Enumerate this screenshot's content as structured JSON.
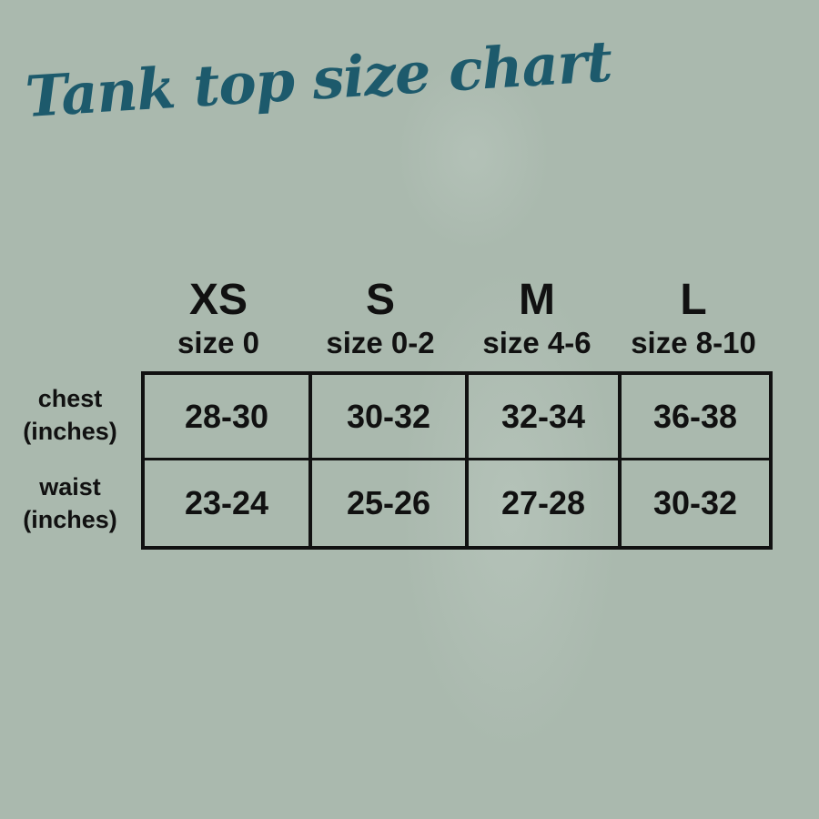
{
  "title": "Tank top size chart",
  "colors": {
    "title": "#1d5a6c",
    "background": "#aab9ae",
    "text": "#111111"
  },
  "chart_data": {
    "type": "table",
    "title": "Tank top size chart",
    "columns": [
      {
        "size": "XS",
        "label": "size 0"
      },
      {
        "size": "S",
        "label": "size 0-2"
      },
      {
        "size": "M",
        "label": "size 4-6"
      },
      {
        "size": "L",
        "label": "size 8-10"
      }
    ],
    "rows": [
      {
        "label": "chest",
        "unit": "(inches)",
        "values": [
          "28-30",
          "30-32",
          "32-34",
          "36-38"
        ]
      },
      {
        "label": "waist",
        "unit": "(inches)",
        "values": [
          "23-24",
          "25-26",
          "27-28",
          "30-32"
        ]
      }
    ]
  }
}
